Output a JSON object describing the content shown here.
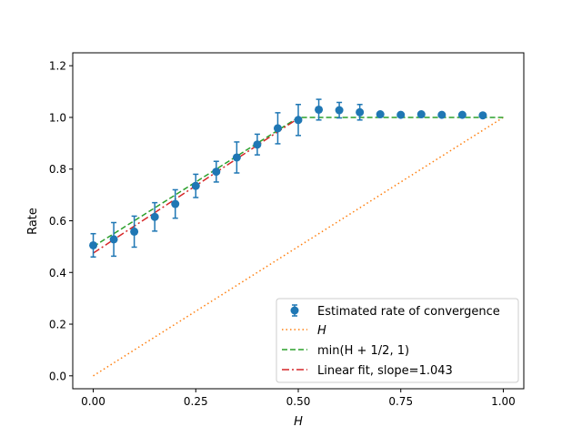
{
  "chart_data": {
    "type": "scatter",
    "title": "",
    "xlabel": "H",
    "ylabel": "Rate",
    "xlim": [
      -0.05,
      1.05
    ],
    "ylim": [
      -0.05,
      1.25
    ],
    "grid": false,
    "legend_position": "bottom-right",
    "x_ticks": [
      0.0,
      0.25,
      0.5,
      0.75,
      1.0
    ],
    "x_tick_labels": [
      "0.00",
      "0.25",
      "0.50",
      "0.75",
      "1.00"
    ],
    "y_ticks": [
      0.0,
      0.2,
      0.4,
      0.6,
      0.8,
      1.0,
      1.2
    ],
    "y_tick_labels": [
      "0.0",
      "0.2",
      "0.4",
      "0.6",
      "0.8",
      "1.0",
      "1.2"
    ],
    "series": [
      {
        "name": "Estimated rate of convergence",
        "kind": "errorbar",
        "color": "#1f77b4",
        "x": [
          0.0,
          0.05,
          0.1,
          0.15,
          0.2,
          0.25,
          0.3,
          0.35,
          0.4,
          0.45,
          0.5,
          0.55,
          0.6,
          0.65,
          0.7,
          0.75,
          0.8,
          0.85,
          0.9,
          0.95
        ],
        "y": [
          0.505,
          0.528,
          0.558,
          0.615,
          0.665,
          0.735,
          0.79,
          0.845,
          0.895,
          0.958,
          0.99,
          1.03,
          1.028,
          1.02,
          1.012,
          1.01,
          1.012,
          1.01,
          1.01,
          1.008
        ],
        "yerr": [
          0.045,
          0.065,
          0.06,
          0.055,
          0.055,
          0.045,
          0.04,
          0.06,
          0.04,
          0.06,
          0.06,
          0.04,
          0.03,
          0.03,
          0.0,
          0.0,
          0.0,
          0.0,
          0.0,
          0.0
        ]
      },
      {
        "name": "H",
        "kind": "line",
        "color": "#ff7f0e",
        "style": "dotted",
        "x": [
          0.0,
          1.0
        ],
        "y": [
          0.0,
          1.0
        ]
      },
      {
        "name": "min(H + 1/2, 1)",
        "kind": "line",
        "color": "#2ca02c",
        "style": "dashed",
        "x": [
          0.0,
          0.5,
          1.0
        ],
        "y": [
          0.5,
          1.0,
          1.0
        ]
      },
      {
        "name": "Linear fit, slope=1.043",
        "kind": "line",
        "color": "#d62728",
        "style": "dashdot",
        "x": [
          0.0,
          0.5
        ],
        "y": [
          0.475,
          0.9965
        ]
      }
    ]
  }
}
